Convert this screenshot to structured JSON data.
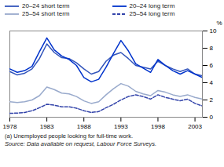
{
  "chart_data": {
    "type": "line",
    "x": [
      1978,
      1979,
      1980,
      1981,
      1982,
      1983,
      1984,
      1985,
      1986,
      1987,
      1988,
      1989,
      1990,
      1991,
      1992,
      1993,
      1994,
      1995,
      1996,
      1997,
      1998,
      1999,
      2000,
      2001,
      2002,
      2003,
      2004
    ],
    "series": [
      {
        "name": "20–24 short term",
        "color": "#3355bb",
        "line_style": "solid",
        "values": [
          5.3,
          4.9,
          5.1,
          5.6,
          6.8,
          8.5,
          7.5,
          6.9,
          6.8,
          6.3,
          5.6,
          5.0,
          5.3,
          6.5,
          7.2,
          7.5,
          6.8,
          6.0,
          5.8,
          5.6,
          6.5,
          6.0,
          5.6,
          5.3,
          5.6,
          5.0,
          4.8
        ]
      },
      {
        "name": "20–24 long term",
        "color": "#0033cc",
        "line_style": "solid",
        "values": [
          5.6,
          5.2,
          5.4,
          5.9,
          7.6,
          9.2,
          7.8,
          7.1,
          6.7,
          6.0,
          4.6,
          4.1,
          4.4,
          5.8,
          7.4,
          8.9,
          7.7,
          6.2,
          5.7,
          5.2,
          6.7,
          6.0,
          5.4,
          5.0,
          5.4,
          5.0,
          4.6
        ]
      },
      {
        "name": "25–54 short term",
        "color": "#99aacc",
        "line_style": "solid",
        "values": [
          1.8,
          1.7,
          1.8,
          2.0,
          2.5,
          3.5,
          3.2,
          2.8,
          2.7,
          2.4,
          1.9,
          1.6,
          1.8,
          2.6,
          3.3,
          3.9,
          3.6,
          3.0,
          2.7,
          2.5,
          3.1,
          2.9,
          2.6,
          2.4,
          2.6,
          2.3,
          2.1
        ]
      },
      {
        "name": "25–54 long term",
        "color": "#3344aa",
        "line_style": "dashed",
        "values": [
          0.45,
          0.48,
          0.55,
          0.75,
          1.1,
          1.5,
          1.4,
          1.2,
          1.2,
          1.05,
          0.75,
          0.55,
          0.65,
          1.1,
          1.5,
          2.0,
          2.4,
          2.6,
          2.4,
          2.1,
          2.6,
          2.3,
          2.1,
          1.9,
          2.1,
          1.6,
          1.3
        ]
      }
    ],
    "ylabel": "%",
    "xlim": [
      1978,
      2004
    ],
    "xticks": [
      1978,
      1983,
      1988,
      1993,
      1998,
      2003
    ],
    "ylim": [
      0,
      10
    ],
    "yticks": [
      0,
      2,
      4,
      6,
      8,
      10
    ],
    "grid": false,
    "legend": "upper left",
    "footnotes": [
      "(a) Unemployed people looking for full-time work.",
      "Source: Data available on request, Labour Force Surveys."
    ]
  }
}
